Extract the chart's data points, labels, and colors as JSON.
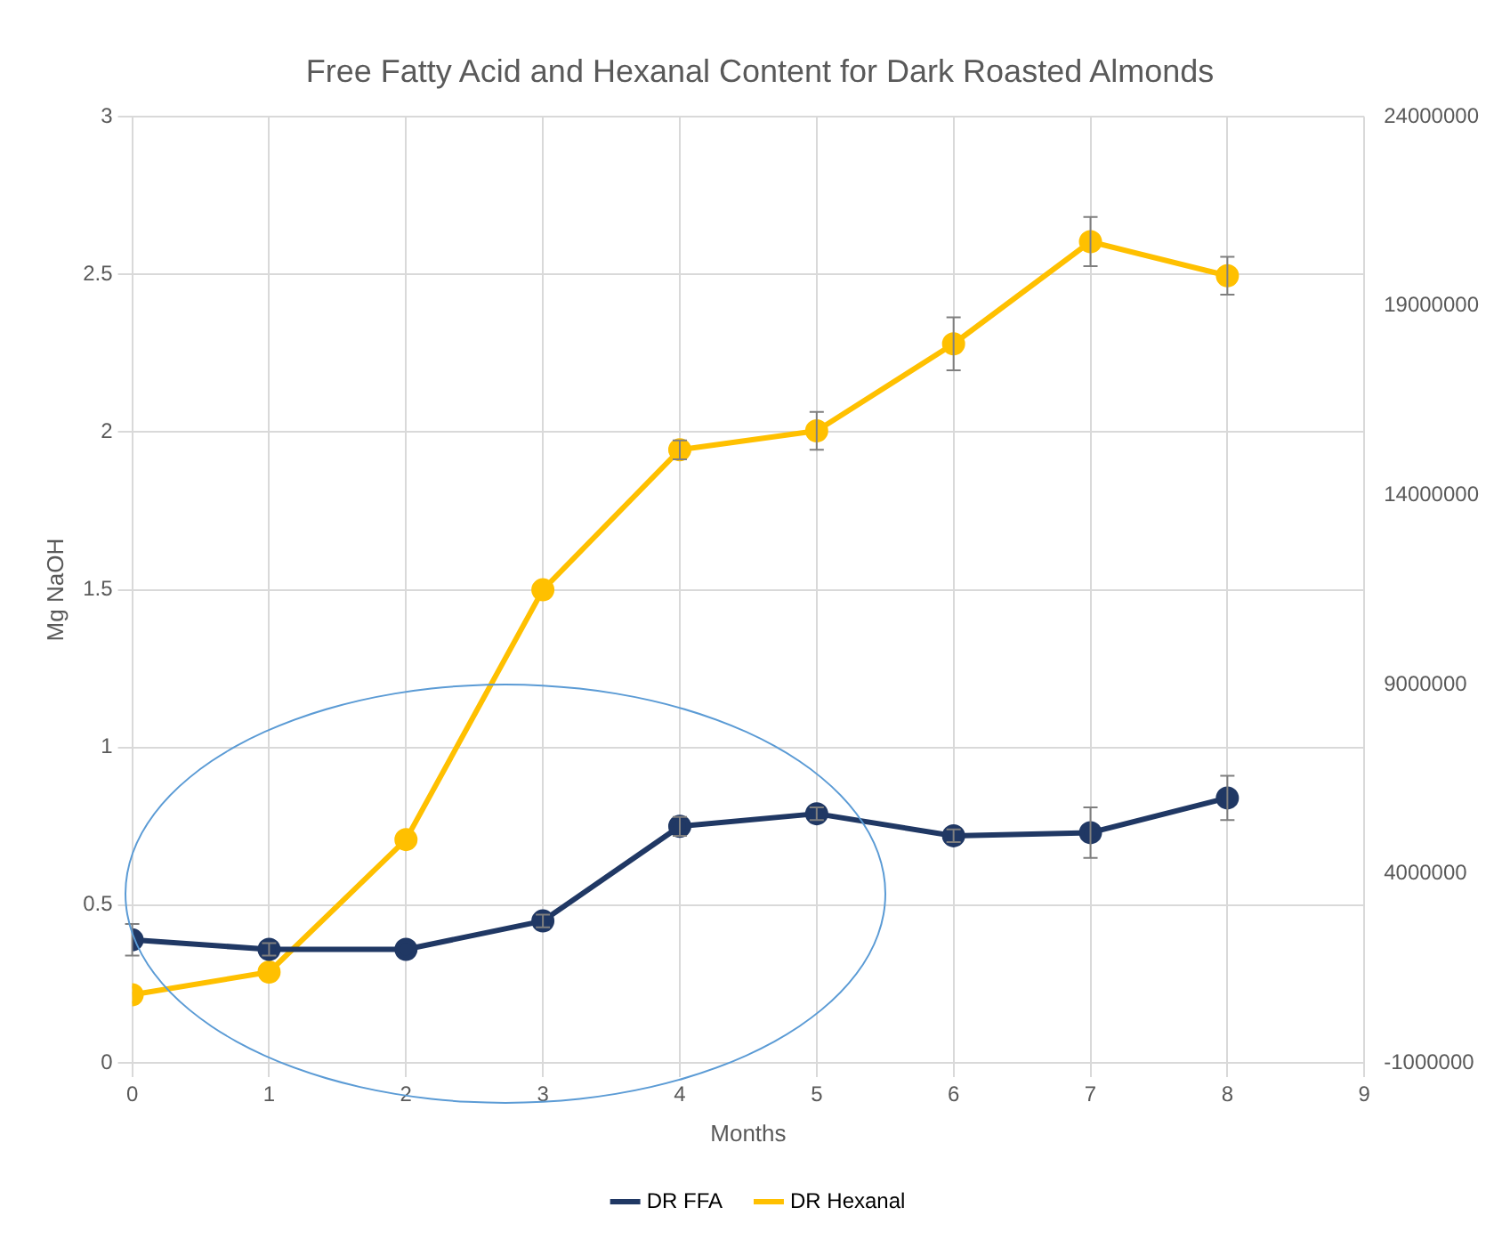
{
  "chart_data": {
    "type": "line",
    "title": "Free Fatty Acid and Hexanal Content for Dark Roasted Almonds",
    "xlabel": "Months",
    "ylabel": "Mg NaOH",
    "x": [
      0,
      1,
      2,
      3,
      4,
      5,
      6,
      7,
      8
    ],
    "series": [
      {
        "name": "DR FFA",
        "color": "#203864",
        "values": [
          0.39,
          0.36,
          0.36,
          0.45,
          0.75,
          0.79,
          0.72,
          0.73,
          0.84
        ],
        "errors": [
          0.05,
          0.02,
          null,
          0.02,
          0.03,
          0.02,
          0.02,
          0.08,
          0.07
        ]
      },
      {
        "name": "DR Hexanal",
        "color": "#ffc000",
        "axis": "y2",
        "values": [
          800000,
          1400000,
          4900000,
          11500000,
          15200000,
          15700000,
          18000000,
          20700000,
          19800000
        ],
        "errors": [
          null,
          null,
          null,
          null,
          250000,
          500000,
          700000,
          650000,
          500000
        ]
      }
    ],
    "xlim": [
      0,
      9
    ],
    "xticks": [
      0,
      1,
      2,
      3,
      4,
      5,
      6,
      7,
      8,
      9
    ],
    "ylim": [
      0,
      3
    ],
    "yticks": [
      0,
      0.5,
      1,
      1.5,
      2,
      2.5,
      3
    ],
    "y2lim": [
      -1000000,
      24000000
    ],
    "y2ticks": [
      -1000000,
      4000000,
      9000000,
      14000000,
      19000000,
      24000000
    ],
    "grid": true,
    "legend": "bottom",
    "marker": "circle",
    "line_style": "solid"
  }
}
